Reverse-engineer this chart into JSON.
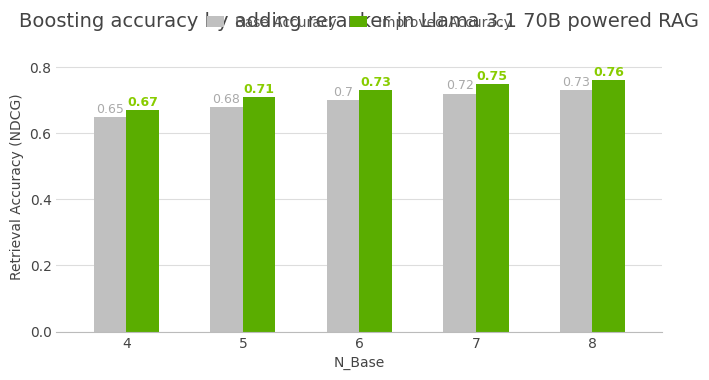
{
  "title": "Boosting accuracy by adding reranker in Llama 3.1 70B powered RAG",
  "xlabel": "N_Base",
  "ylabel": "Retrieval Accuracy (NDCG)",
  "categories": [
    4,
    5,
    6,
    7,
    8
  ],
  "base_values": [
    0.65,
    0.68,
    0.7,
    0.72,
    0.73
  ],
  "improved_values": [
    0.67,
    0.71,
    0.73,
    0.75,
    0.76
  ],
  "base_color": "#c0c0c0",
  "improved_color": "#5aad00",
  "base_label": "Base Accuracy",
  "improved_label": "Improved Accuracy",
  "base_text_color": "#aaaaaa",
  "improved_text_color": "#88cc00",
  "ylim": [
    0,
    0.88
  ],
  "yticks": [
    0.0,
    0.2,
    0.4,
    0.6,
    0.8
  ],
  "background_color": "#ffffff",
  "grid_color": "#dddddd",
  "bar_width": 0.28,
  "title_fontsize": 14,
  "axis_label_fontsize": 10,
  "tick_fontsize": 10,
  "annotation_fontsize": 9,
  "legend_fontsize": 10
}
